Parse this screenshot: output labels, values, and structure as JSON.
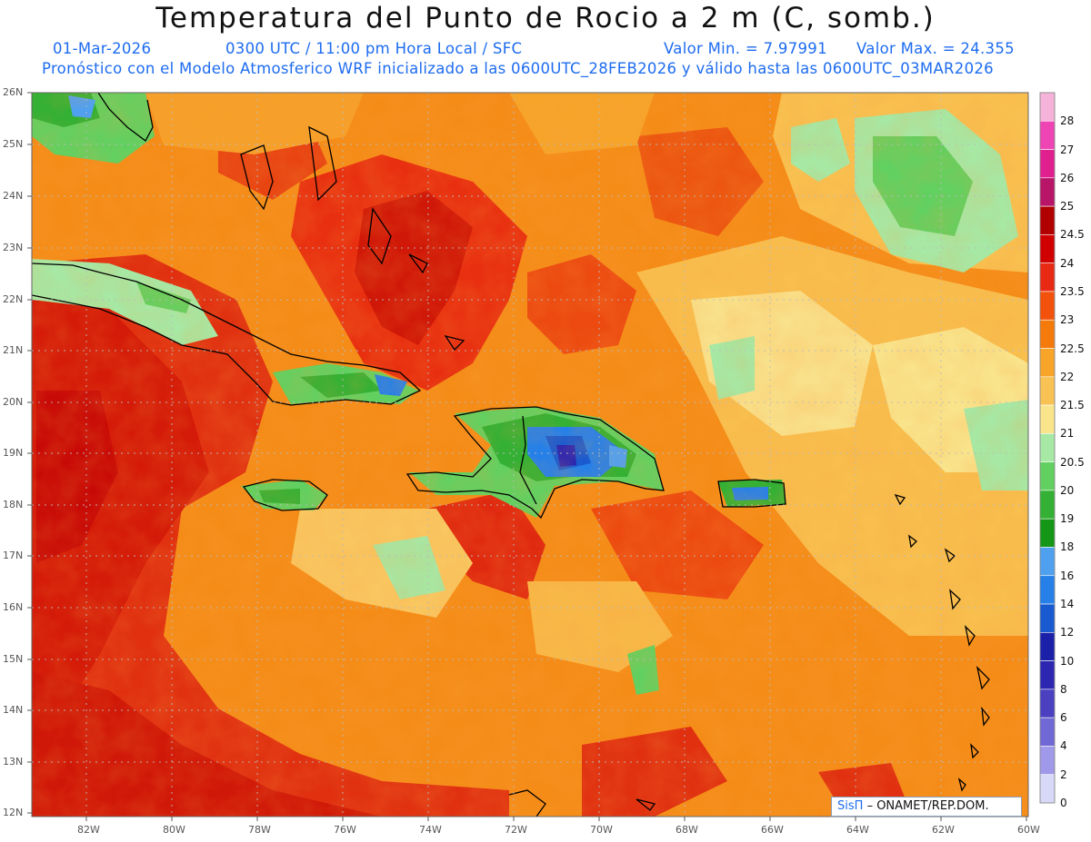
{
  "header": {
    "title": "Temperatura del Punto de Rocio a 2 m (C, somb.)",
    "date": "01-Mar-2026",
    "time": "0300 UTC / 11:00 pm Hora Local / SFC",
    "valmin": "Valor Min. = 7.97991",
    "valmax": "Valor Max. = 24.355",
    "model_line": "Pronóstico con el Modelo Atmosferico WRF inicializado a las 0600UTC_28FEB2026 y válido hasta las  0600UTC_03MAR2026"
  },
  "axes": {
    "lat_labels": [
      "26N",
      "25N",
      "24N",
      "23N",
      "22N",
      "21N",
      "20N",
      "19N",
      "18N",
      "17N",
      "16N",
      "15N",
      "14N",
      "13N",
      "12N"
    ],
    "lon_labels": [
      "82W",
      "80W",
      "78W",
      "76W",
      "74W",
      "72W",
      "70W",
      "68W",
      "66W",
      "64W",
      "62W",
      "60W"
    ]
  },
  "colorbar": {
    "levels": [
      "28",
      "27",
      "26",
      "25",
      "24.5",
      "24",
      "23.5",
      "23",
      "22.5",
      "22",
      "21.5",
      "21",
      "20.5",
      "20",
      "19",
      "18",
      "16",
      "14",
      "12",
      "10",
      "8",
      "6",
      "4",
      "2",
      "0"
    ],
    "colors": [
      "#f5b3d9",
      "#ee44b4",
      "#e0208f",
      "#b81468",
      "#b00000",
      "#d00000",
      "#e82a14",
      "#f2520c",
      "#f47a0c",
      "#f7a428",
      "#f9c254",
      "#f9e48c",
      "#a6e8a4",
      "#62d060",
      "#34b034",
      "#169616",
      "#50a0f0",
      "#2680e8",
      "#1a5ad0",
      "#1a20a8",
      "#2c26b0",
      "#4a40c0",
      "#7068d4",
      "#a098e8",
      "#d8d8f8"
    ]
  },
  "credit": {
    "logo": "SisΠ",
    "text": "– ONAMET/REP.DOM."
  },
  "colors": {
    "title": "#111111",
    "subtitle": "#1e6cf0",
    "land_outline": "#000000"
  }
}
